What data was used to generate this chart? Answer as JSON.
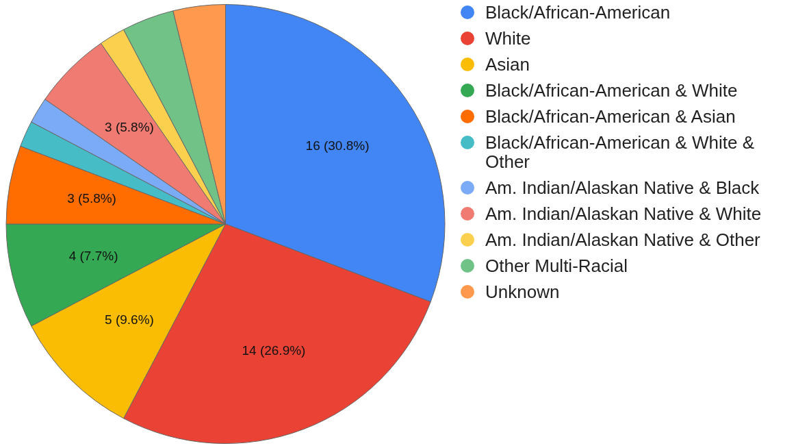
{
  "chart_data": {
    "type": "pie",
    "categories": [
      "Black/African-American",
      "White",
      "Asian",
      "Black/African-American & White",
      "Black/African-American & Asian",
      "Black/African-American & White & Other",
      "Am. Indian/Alaskan Native & Black",
      "Am. Indian/Alaskan Native & White",
      "Am. Indian/Alaskan Native & Other",
      "Other Multi-Racial",
      "Unknown"
    ],
    "values": [
      16,
      14,
      5,
      4,
      3,
      1,
      1,
      3,
      1,
      2,
      2
    ],
    "colors": [
      "#4285f4",
      "#ea4335",
      "#fbbc04",
      "#34a853",
      "#ff6d01",
      "#46bdc6",
      "#7baaf7",
      "#f07b72",
      "#fcd04f",
      "#71c287",
      "#ff994d"
    ],
    "value_labels": [
      "16 (30.8%)",
      "14 (26.9%)",
      "5 (9.6%)",
      "4 (7.7%)",
      "3 (5.8%)",
      null,
      null,
      "3 (5.8%)",
      null,
      null,
      null
    ],
    "legend": "right"
  }
}
